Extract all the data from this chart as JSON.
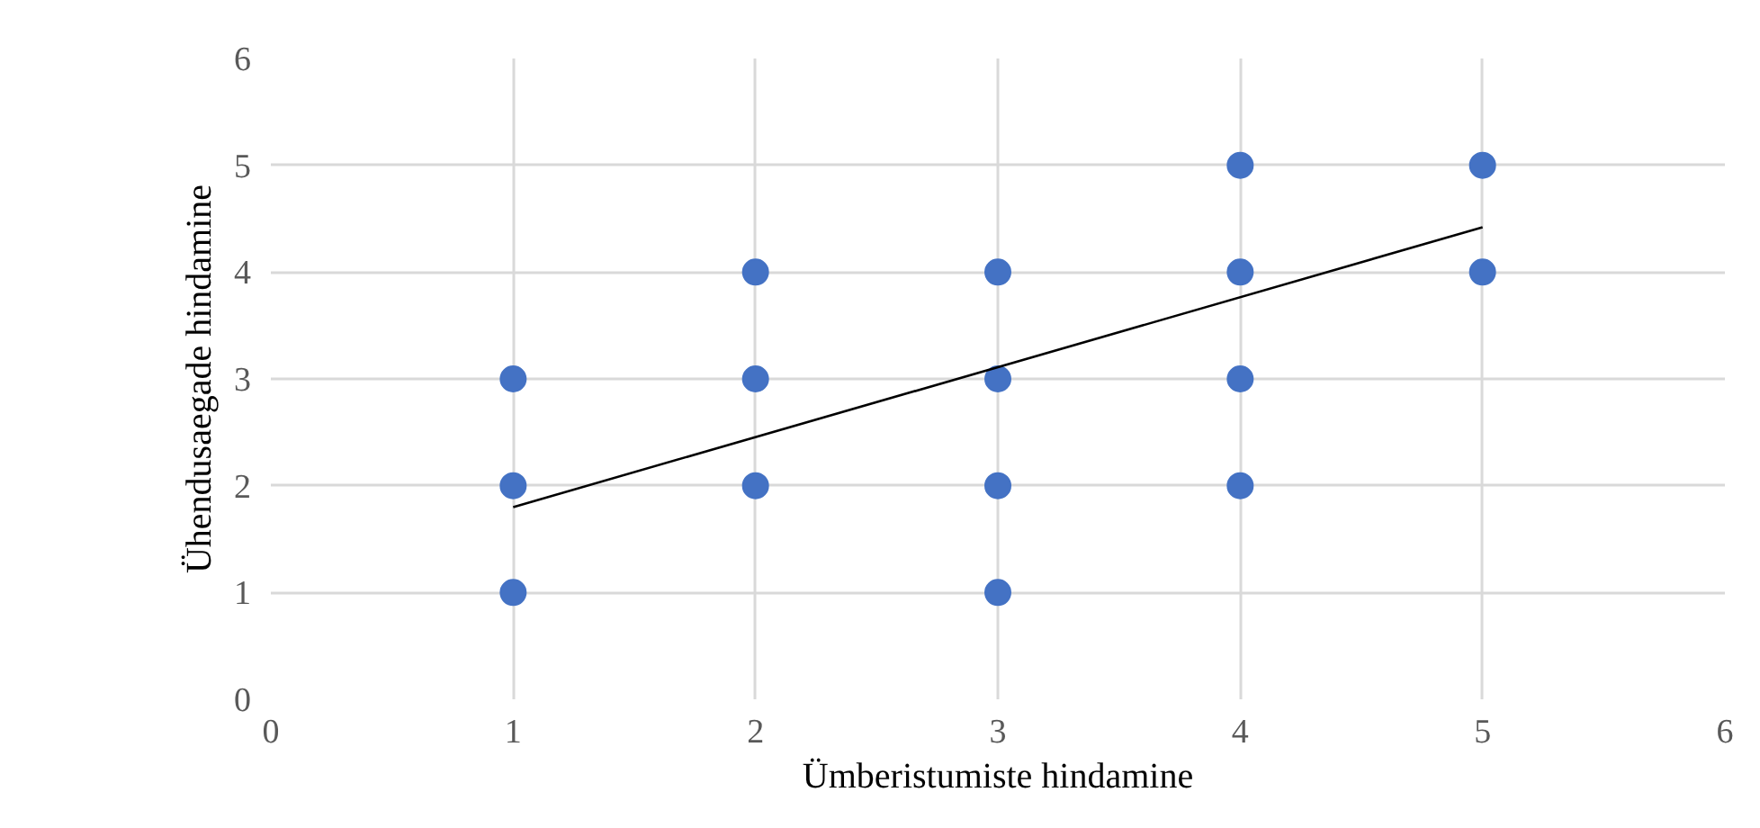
{
  "chart_data": {
    "type": "scatter",
    "xlabel": "Ümberistumiste hindamine",
    "ylabel": "Ühendusaegade hindamine",
    "xlim": [
      0,
      6
    ],
    "ylim": [
      0,
      6
    ],
    "xticks": [
      0,
      1,
      2,
      3,
      4,
      5,
      6
    ],
    "yticks": [
      0,
      1,
      2,
      3,
      4,
      5,
      6
    ],
    "grid": true,
    "series": [
      {
        "color": "#4472c4",
        "marker": "circle",
        "x": [
          1,
          1,
          1,
          2,
          2,
          2,
          3,
          3,
          3,
          3,
          4,
          4,
          4,
          4,
          5,
          5
        ],
        "values": [
          1,
          2,
          3,
          2,
          3,
          4,
          1,
          2,
          3,
          4,
          2,
          3,
          4,
          5,
          4,
          5
        ]
      },
      {
        "type": "line",
        "color": "#000000",
        "marker": "none",
        "line_style": "solid",
        "x": [
          1,
          5
        ],
        "values": [
          1.8,
          4.42
        ]
      }
    ]
  }
}
